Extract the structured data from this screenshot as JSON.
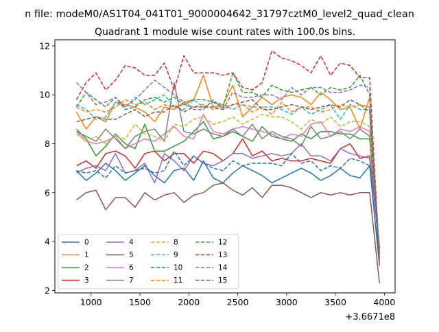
{
  "chart_data": {
    "type": "line",
    "suptitle": "n file: modeM0/AS1T04_041T01_9000004642_31797cztM0_level2_quad_clean",
    "title": "Quadrant 1 module wise count rates with 100.0s bins.",
    "xlabel": "",
    "ylabel": "",
    "offset_label": "+3.6671e8",
    "xlim": [
      630,
      4110
    ],
    "ylim": [
      1.9,
      12.25
    ],
    "xticks": [
      1000,
      1500,
      2000,
      2500,
      3000,
      3500,
      4000
    ],
    "yticks": [
      2,
      4,
      6,
      8,
      10,
      12
    ],
    "x": [
      850,
      950,
      1050,
      1150,
      1250,
      1350,
      1450,
      1550,
      1650,
      1750,
      1850,
      1950,
      2050,
      2150,
      2250,
      2350,
      2450,
      2550,
      2650,
      2750,
      2850,
      2950,
      3050,
      3150,
      3250,
      3350,
      3450,
      3550,
      3650,
      3750,
      3850,
      3950
    ],
    "legend": "lower-left",
    "series": [
      {
        "name": "0",
        "color": "#1f77b4",
        "dash": "solid",
        "values": [
          6.9,
          6.5,
          6.8,
          7.2,
          6.9,
          6.5,
          6.8,
          7.1,
          6.7,
          6.4,
          6.9,
          7.0,
          6.5,
          7.3,
          6.6,
          6.4,
          6.8,
          7.1,
          6.9,
          6.7,
          6.4,
          6.6,
          6.8,
          7.0,
          6.8,
          6.5,
          6.7,
          7.0,
          6.7,
          6.6,
          7.1,
          3.0
        ]
      },
      {
        "name": "1",
        "color": "#ff7f0e",
        "dash": "solid",
        "values": [
          9.3,
          8.6,
          9.1,
          8.9,
          9.7,
          9.6,
          9.5,
          9.3,
          8.9,
          9.5,
          9.4,
          9.7,
          9.8,
          10.8,
          9.5,
          9.6,
          10.4,
          9.1,
          9.5,
          9.9,
          9.6,
          9.9,
          10.0,
          9.9,
          9.6,
          10.1,
          9.8,
          9.4,
          9.5,
          8.6,
          9.9,
          3.3
        ]
      },
      {
        "name": "2",
        "color": "#2ca02c",
        "dash": "solid",
        "values": [
          8.6,
          8.2,
          7.5,
          7.9,
          8.4,
          8.0,
          7.8,
          8.8,
          7.7,
          7.7,
          7.9,
          8.1,
          8.5,
          8.9,
          8.2,
          8.3,
          8.5,
          8.3,
          8.1,
          8.7,
          8.3,
          8.2,
          8.1,
          8.4,
          8.2,
          8.5,
          8.5,
          8.4,
          8.4,
          8.2,
          8.2,
          3.5
        ]
      },
      {
        "name": "3",
        "color": "#d62728",
        "dash": "solid",
        "values": [
          7.1,
          7.3,
          7.0,
          7.6,
          7.7,
          7.5,
          7.0,
          7.6,
          7.7,
          7.3,
          7.6,
          7.6,
          7.2,
          7.7,
          7.6,
          7.3,
          7.6,
          8.2,
          7.5,
          7.7,
          7.3,
          7.4,
          7.3,
          7.3,
          7.4,
          7.3,
          7.2,
          7.8,
          8.0,
          7.4,
          7.5,
          3.8
        ]
      },
      {
        "name": "4",
        "color": "#9467bd",
        "dash": "solid",
        "values": [
          6.8,
          7.0,
          7.1,
          6.9,
          7.6,
          6.8,
          6.9,
          7.2,
          6.4,
          7.6,
          7.3,
          6.9,
          7.5,
          7.2,
          7.1,
          7.3,
          7.6,
          7.6,
          7.4,
          7.5,
          7.6,
          7.5,
          7.6,
          8.0,
          7.5,
          7.5,
          7.3,
          7.8,
          7.6,
          7.5,
          7.4,
          3.7
        ]
      },
      {
        "name": "5",
        "color": "#8c564b",
        "dash": "solid",
        "values": [
          5.7,
          6.0,
          6.1,
          5.3,
          5.8,
          5.8,
          5.4,
          6.0,
          5.7,
          5.9,
          6.0,
          5.6,
          5.9,
          6.0,
          6.3,
          6.4,
          6.1,
          5.9,
          6.2,
          5.8,
          6.3,
          6.3,
          6.2,
          6.0,
          5.8,
          6.0,
          5.9,
          6.0,
          5.9,
          6.0,
          6.0,
          2.3
        ]
      },
      {
        "name": "6",
        "color": "#e377c2",
        "dash": "solid",
        "values": [
          8.5,
          8.1,
          8.0,
          8.1,
          8.3,
          7.8,
          8.0,
          8.2,
          8.1,
          8.4,
          8.7,
          8.3,
          8.2,
          9.2,
          8.5,
          8.4,
          8.6,
          8.7,
          8.6,
          8.5,
          8.4,
          8.2,
          8.4,
          8.3,
          8.8,
          8.9,
          8.3,
          8.6,
          8.5,
          8.7,
          8.5,
          3.7
        ]
      },
      {
        "name": "7",
        "color": "#7f7f7f",
        "dash": "solid",
        "values": [
          8.5,
          8.3,
          8.1,
          8.6,
          8.2,
          7.8,
          8.3,
          8.5,
          8.6,
          8.1,
          10.5,
          8.5,
          8.4,
          8.6,
          8.4,
          8.3,
          8.6,
          8.3,
          8.8,
          8.2,
          8.5,
          8.3,
          8.2,
          7.9,
          8.7,
          8.2,
          8.3,
          8.5,
          8.2,
          8.6,
          8.3,
          3.7
        ]
      },
      {
        "name": "8",
        "color": "#bcbd22",
        "dash": "dashed",
        "values": [
          8.4,
          8.1,
          8.3,
          8.0,
          8.3,
          8.2,
          8.8,
          8.4,
          8.3,
          8.1,
          8.8,
          8.7,
          9.0,
          9.1,
          8.8,
          8.9,
          9.1,
          8.8,
          9.0,
          9.2,
          9.1,
          9.1,
          8.9,
          8.6,
          9.0,
          8.8,
          9.1,
          8.7,
          8.9,
          8.9,
          8.7,
          3.5
        ]
      },
      {
        "name": "9",
        "color": "#17becf",
        "dash": "dashed",
        "values": [
          9.6,
          9.4,
          9.0,
          9.1,
          9.7,
          9.5,
          9.9,
          9.6,
          9.8,
          10.0,
          9.5,
          9.4,
          9.8,
          9.5,
          9.7,
          9.6,
          9.4,
          9.6,
          9.5,
          9.5,
          9.5,
          9.4,
          9.2,
          9.5,
          9.2,
          9.4,
          9.6,
          9.0,
          9.6,
          9.4,
          9.4,
          3.0
        ]
      },
      {
        "name": "10",
        "color": "#1f77b4",
        "dash": "dashed",
        "values": [
          6.9,
          6.8,
          6.9,
          6.6,
          7.1,
          6.8,
          6.9,
          7.0,
          6.8,
          6.9,
          7.7,
          7.1,
          7.5,
          7.2,
          7.0,
          6.9,
          7.3,
          7.1,
          7.2,
          7.2,
          7.2,
          7.1,
          7.6,
          7.2,
          7.3,
          6.9,
          7.1,
          7.0,
          7.4,
          7.3,
          7.1,
          3.1
        ]
      },
      {
        "name": "11",
        "color": "#ff7f0e",
        "dash": "dashed",
        "values": [
          9.5,
          9.3,
          9.4,
          9.3,
          9.5,
          9.8,
          9.6,
          9.7,
          9.4,
          9.6,
          9.5,
          9.6,
          9.5,
          9.6,
          9.4,
          9.5,
          9.6,
          9.6,
          9.3,
          9.5,
          9.2,
          9.7,
          9.3,
          9.5,
          9.5,
          9.3,
          9.4,
          9.6,
          9.5,
          9.6,
          9.5,
          3.2
        ]
      },
      {
        "name": "12",
        "color": "#2ca02c",
        "dash": "dashed",
        "values": [
          9.5,
          10.1,
          9.8,
          9.5,
          9.9,
          9.4,
          9.5,
          9.8,
          9.9,
          9.7,
          9.9,
          9.6,
          9.8,
          9.8,
          9.7,
          9.5,
          10.9,
          10.1,
          10.1,
          9.9,
          10.4,
          10.2,
          10.1,
          10.2,
          10.3,
          10.0,
          10.3,
          10.2,
          10.3,
          10.8,
          10.0,
          3.5
        ]
      },
      {
        "name": "13",
        "color": "#d62728",
        "dash": "dashed",
        "values": [
          9.8,
          10.5,
          10.9,
          10.2,
          10.6,
          11.2,
          11.1,
          10.8,
          10.8,
          11.3,
          10.2,
          11.6,
          10.9,
          10.9,
          10.9,
          10.8,
          10.9,
          10.3,
          10.2,
          10.5,
          11.8,
          11.5,
          11.4,
          11.2,
          10.9,
          11.6,
          10.8,
          11.3,
          11.2,
          10.7,
          10.7,
          3.3
        ]
      },
      {
        "name": "14",
        "color": "#9467bd",
        "dash": "dashed",
        "values": [
          10.5,
          10.1,
          9.6,
          9.7,
          9.9,
          9.5,
          9.8,
          10.2,
          10.6,
          10.3,
          10.0,
          9.7,
          9.4,
          9.4,
          9.8,
          9.4,
          10.1,
          9.9,
          9.9,
          10.0,
          10.0,
          9.8,
          10.3,
          10.0,
          10.3,
          10.3,
          10.1,
          10.1,
          10.2,
          10.4,
          10.3,
          3.1
        ]
      },
      {
        "name": "15",
        "color": "#8c564b",
        "dash": "dashed",
        "values": [
          8.9,
          9.0,
          9.1,
          9.0,
          9.0,
          9.2,
          9.4,
          9.1,
          9.3,
          9.3,
          9.6,
          9.3,
          9.5,
          9.5,
          9.5,
          9.4,
          9.6,
          9.7,
          9.8,
          9.4,
          9.4,
          9.5,
          9.6,
          9.5,
          9.4,
          9.5,
          9.6,
          9.5,
          9.8,
          9.6,
          9.3,
          3.1
        ]
      }
    ]
  }
}
